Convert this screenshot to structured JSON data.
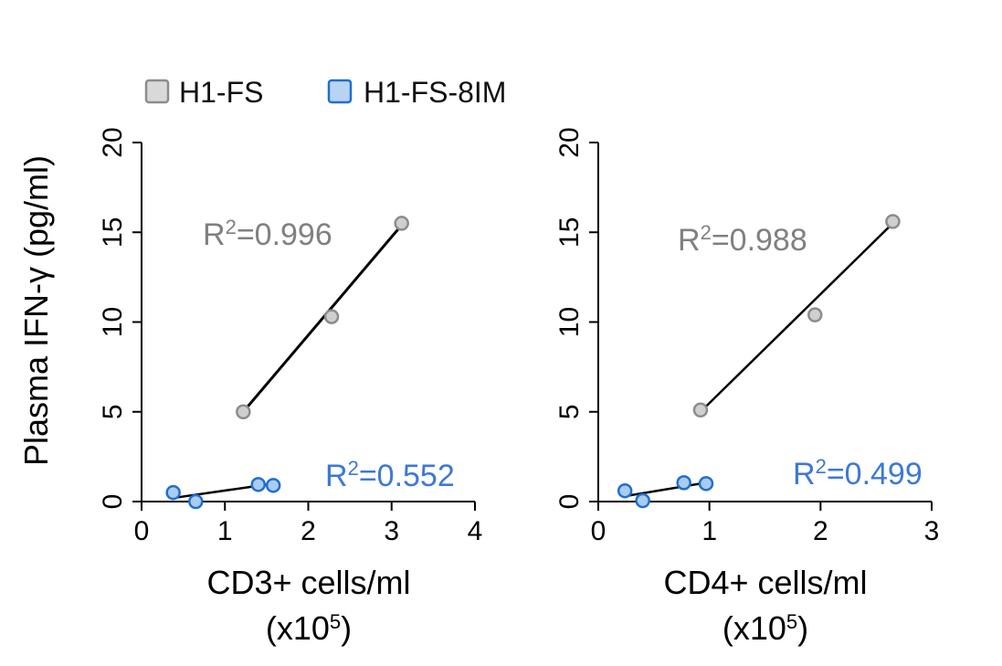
{
  "legend": [
    {
      "label": "H1-FS",
      "fill": "#d9d9d9",
      "stroke": "#8c8c8c"
    },
    {
      "label": "H1-FS-8IM",
      "fill": "#b9d3f2",
      "stroke": "#1f6fd1"
    }
  ],
  "ylabel": "Plasma IFN-γ (pg/ml)",
  "colors": {
    "gray_text": "#808080",
    "blue_text": "#3d78d8",
    "gray_point": "#cfcfcf",
    "gray_edge": "#8c8c8c",
    "blue_point": "#aaccf2",
    "blue_edge": "#1f6fd1"
  },
  "chart_data": [
    {
      "type": "scatter",
      "xlabel_line1": "CD3+ cells/ml",
      "xlabel_unit_base": "(x10",
      "xlabel_unit_exp": "5",
      "xlabel_unit_end": ")",
      "xlim": [
        0,
        4
      ],
      "xticks": [
        "0",
        "1",
        "2",
        "3",
        "4"
      ],
      "ylim": [
        0,
        20
      ],
      "yticks": [
        "0",
        "5",
        "10",
        "15",
        "20"
      ],
      "series": [
        {
          "name": "H1-FS",
          "points": [
            [
              1.22,
              5.0
            ],
            [
              2.28,
              10.3
            ],
            [
              3.12,
              15.5
            ]
          ],
          "fit": [
            [
              1.22,
              5.0
            ],
            [
              3.12,
              15.4
            ]
          ],
          "r2_base": "R",
          "r2_exp": "2",
          "r2_val": "=0.996"
        },
        {
          "name": "H1-FS-8IM",
          "points": [
            [
              0.38,
              0.5
            ],
            [
              0.65,
              0.0
            ],
            [
              1.4,
              0.95
            ],
            [
              1.58,
              0.9
            ]
          ],
          "fit": [
            [
              0.38,
              0.2
            ],
            [
              1.58,
              1.0
            ]
          ],
          "r2_base": "R",
          "r2_exp": "2",
          "r2_val": "=0.552"
        }
      ]
    },
    {
      "type": "scatter",
      "xlabel_line1": "CD4+ cells/ml",
      "xlabel_unit_base": "(x10",
      "xlabel_unit_exp": "5",
      "xlabel_unit_end": ")",
      "xlim": [
        0,
        3
      ],
      "xticks": [
        "0",
        "1",
        "2",
        "3"
      ],
      "ylim": [
        0,
        20
      ],
      "yticks": [
        "0",
        "5",
        "10",
        "15",
        "20"
      ],
      "series": [
        {
          "name": "H1-FS",
          "points": [
            [
              0.92,
              5.1
            ],
            [
              1.95,
              10.4
            ],
            [
              2.65,
              15.6
            ]
          ],
          "fit": [
            [
              0.92,
              5.0
            ],
            [
              2.65,
              15.5
            ]
          ],
          "r2_base": "R",
          "r2_exp": "2",
          "r2_val": "=0.988"
        },
        {
          "name": "H1-FS-8IM",
          "points": [
            [
              0.24,
              0.6
            ],
            [
              0.4,
              0.05
            ],
            [
              0.77,
              1.05
            ],
            [
              0.97,
              1.0
            ]
          ],
          "fit": [
            [
              0.24,
              0.3
            ],
            [
              0.97,
              1.05
            ]
          ],
          "r2_base": "R",
          "r2_exp": "2",
          "r2_val": "=0.499"
        }
      ]
    }
  ]
}
